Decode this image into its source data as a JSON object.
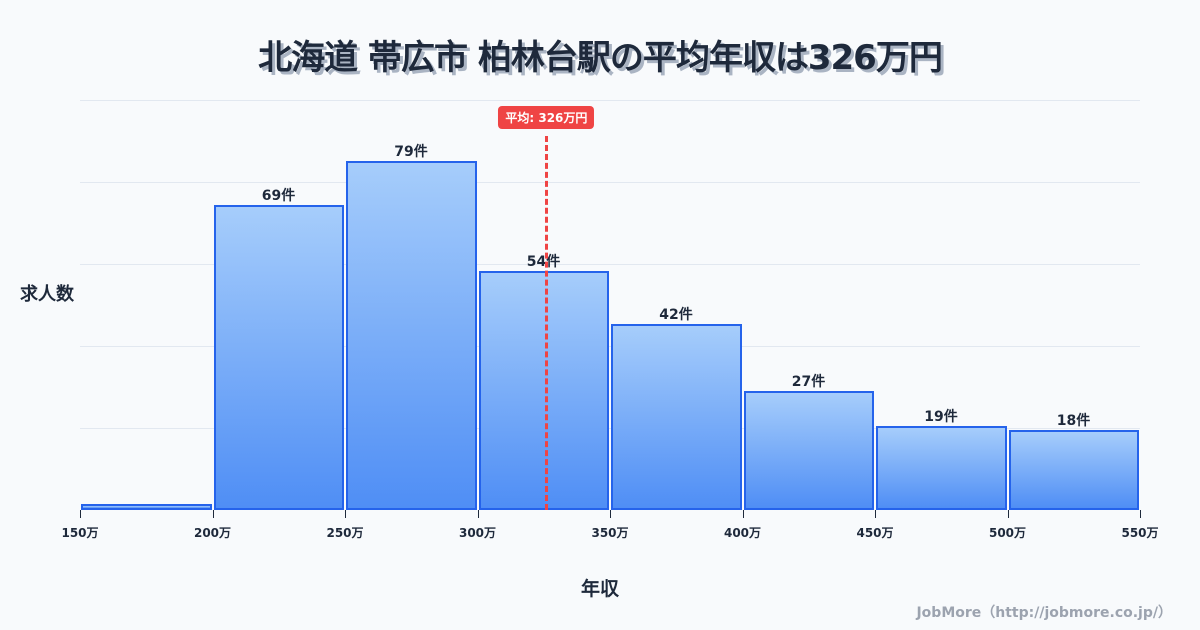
{
  "header": {
    "title": "北海道 帯広市 柏林台駅の平均年収は326万円"
  },
  "axes": {
    "ylabel": "求人数",
    "xlabel": "年収"
  },
  "credit": "JobMore（http://jobmore.co.jp/）",
  "average": {
    "label": "平均: 326万円",
    "value": 326,
    "color": "#ef4444"
  },
  "colors": {
    "bar_border": "#2563eb",
    "bar_top": "#a6cdfb",
    "bar_bottom": "#4f8ef5",
    "background": "#f8fafc"
  },
  "bars": [
    {
      "range": "150万-200万",
      "value": 1,
      "label": ""
    },
    {
      "range": "200万-250万",
      "value": 69,
      "label": "69件"
    },
    {
      "range": "250万-300万",
      "value": 79,
      "label": "79件"
    },
    {
      "range": "300万-350万",
      "value": 54,
      "label": "54件"
    },
    {
      "range": "350万-400万",
      "value": 42,
      "label": "42件"
    },
    {
      "range": "400万-450万",
      "value": 27,
      "label": "27件"
    },
    {
      "range": "450万-500万",
      "value": 19,
      "label": "19件"
    },
    {
      "range": "500万-550万",
      "value": 18,
      "label": "18件"
    }
  ],
  "ticks": [
    "150万",
    "200万",
    "250万",
    "300万",
    "350万",
    "400万",
    "450万",
    "500万",
    "550万"
  ],
  "chart_data": {
    "type": "bar",
    "title": "北海道 帯広市 柏林台駅の平均年収は326万円",
    "xlabel": "年収",
    "ylabel": "求人数",
    "categories": [
      "150万-200万",
      "200万-250万",
      "250万-300万",
      "300万-350万",
      "350万-400万",
      "400万-450万",
      "450万-500万",
      "500万-550万"
    ],
    "values": [
      1,
      69,
      79,
      54,
      42,
      27,
      19,
      18
    ],
    "x_tick_labels": [
      "150万",
      "200万",
      "250万",
      "300万",
      "350万",
      "400万",
      "450万",
      "500万",
      "550万"
    ],
    "xlim": [
      150,
      550
    ],
    "ylim": [
      0,
      92
    ],
    "grid": true,
    "annotations": [
      {
        "type": "vline",
        "x": 326,
        "label": "平均: 326万円",
        "style": "dashed",
        "color": "#ef4444"
      }
    ],
    "data_labels": [
      "",
      "69件",
      "79件",
      "54件",
      "42件",
      "27件",
      "19件",
      "18件"
    ]
  }
}
